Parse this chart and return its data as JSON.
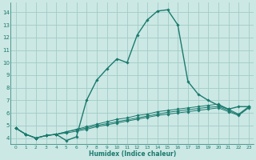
{
  "title": "",
  "xlabel": "Humidex (Indice chaleur)",
  "ylabel": "",
  "xlim": [
    -0.5,
    23.5
  ],
  "ylim": [
    3.5,
    14.8
  ],
  "xticks": [
    0,
    1,
    2,
    3,
    4,
    5,
    6,
    7,
    8,
    9,
    10,
    11,
    12,
    13,
    14,
    15,
    16,
    17,
    18,
    19,
    20,
    21,
    22,
    23
  ],
  "yticks": [
    4,
    5,
    6,
    7,
    8,
    9,
    10,
    11,
    12,
    13,
    14
  ],
  "bg_color": "#cce8e4",
  "grid_color": "#a0ccc8",
  "line_color": "#1a7a6e",
  "lines": [
    [
      4.8,
      4.3,
      4.0,
      4.2,
      4.3,
      3.8,
      4.1,
      7.0,
      8.6,
      9.5,
      10.3,
      10.0,
      12.2,
      13.4,
      14.1,
      14.2,
      13.0,
      8.5,
      7.5,
      7.0,
      6.6,
      6.3,
      6.5,
      6.5
    ],
    [
      4.8,
      4.3,
      4.0,
      4.2,
      4.3,
      4.5,
      4.7,
      4.9,
      5.1,
      5.3,
      5.5,
      5.6,
      5.8,
      5.9,
      6.1,
      6.2,
      6.3,
      6.4,
      6.5,
      6.6,
      6.7,
      6.3,
      5.9,
      6.5
    ],
    [
      4.8,
      4.3,
      4.0,
      4.2,
      4.3,
      4.5,
      4.65,
      4.8,
      5.0,
      5.15,
      5.3,
      5.45,
      5.6,
      5.75,
      5.9,
      6.05,
      6.15,
      6.25,
      6.35,
      6.45,
      6.5,
      6.2,
      5.85,
      6.45
    ],
    [
      4.8,
      4.3,
      4.0,
      4.2,
      4.3,
      4.4,
      4.55,
      4.7,
      4.9,
      5.05,
      5.2,
      5.35,
      5.5,
      5.65,
      5.8,
      5.9,
      6.0,
      6.1,
      6.2,
      6.3,
      6.4,
      6.1,
      5.8,
      6.4
    ]
  ]
}
